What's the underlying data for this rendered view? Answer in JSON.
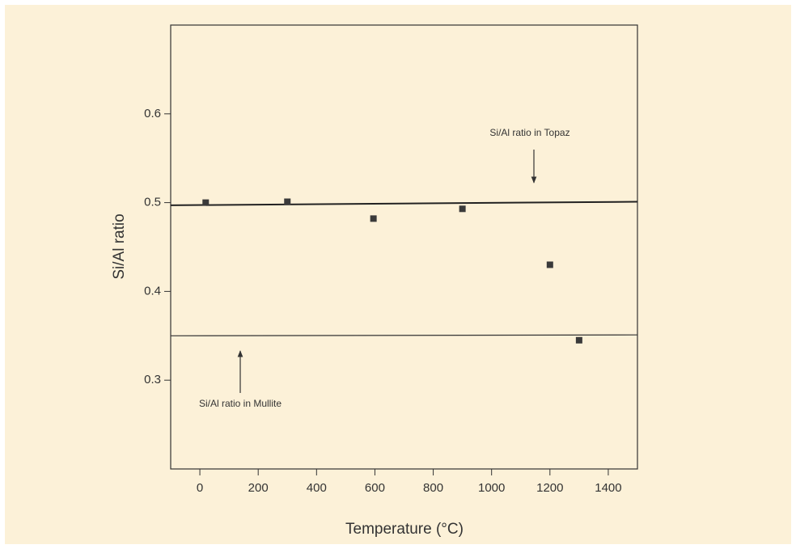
{
  "chart_data": {
    "type": "scatter",
    "x_label": "Temperature (°C)",
    "y_label": "Si/Al ratio",
    "x": [
      20,
      300,
      595,
      900,
      1200,
      1300
    ],
    "values": [
      0.5,
      0.501,
      0.482,
      0.493,
      0.43,
      0.345
    ],
    "color": "#3a3a3a",
    "reference_lines": [
      {
        "x": [
          -100,
          1500
        ],
        "values": [
          0.497,
          0.501
        ],
        "color": "#222"
      },
      {
        "x": [
          -100,
          1500
        ],
        "values": [
          0.35,
          0.351
        ],
        "color": "#333"
      }
    ],
    "annotations": [
      "Si/Al ratio in Topaz",
      "Si/Al ratio in Mullite"
    ],
    "xlim": [
      -100,
      1500
    ],
    "xticks": [
      0,
      200,
      400,
      600,
      800,
      1000,
      1200,
      1400
    ],
    "ylim": [
      0.2,
      0.7
    ],
    "yticks": [
      0.3,
      0.4,
      0.5,
      0.6
    ]
  }
}
